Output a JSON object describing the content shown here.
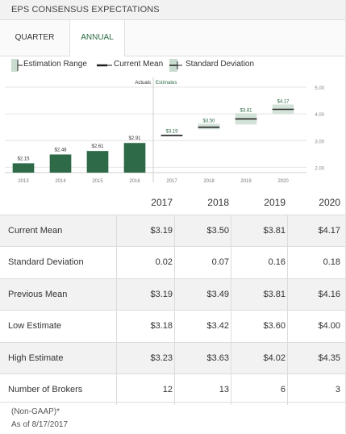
{
  "header": {
    "title": "EPS CONSENSUS EXPECTATIONS"
  },
  "tabs": [
    {
      "label": "QUARTER"
    },
    {
      "label": "ANNUAL"
    }
  ],
  "legend": {
    "estimation_range": "Estimation Range",
    "current_mean": "Current Mean",
    "standard_deviation": "Standard Deviation"
  },
  "colors": {
    "bar": "#2e6a48",
    "range": "#c9dccf",
    "mean": "#222222",
    "accent": "#2b6b45",
    "grid": "#e4e4e4"
  },
  "chart_data": {
    "type": "bar",
    "section_labels": {
      "actuals": "Actuals",
      "estimates": "Estimates"
    },
    "categories": [
      "2013",
      "2014",
      "2015",
      "2016",
      "2017",
      "2018",
      "2019",
      "2020"
    ],
    "actuals": [
      {
        "year": "2013",
        "value": 2.15,
        "label": "$2.15"
      },
      {
        "year": "2014",
        "value": 2.48,
        "label": "$2.48"
      },
      {
        "year": "2015",
        "value": 2.61,
        "label": "$2.61"
      },
      {
        "year": "2016",
        "value": 2.91,
        "label": "$2.91"
      }
    ],
    "estimates": [
      {
        "year": "2017",
        "mean": 3.19,
        "low": 3.18,
        "high": 3.23,
        "label": "$3.19"
      },
      {
        "year": "2018",
        "mean": 3.5,
        "low": 3.42,
        "high": 3.63,
        "label": "$3.50"
      },
      {
        "year": "2019",
        "mean": 3.81,
        "low": 3.6,
        "high": 4.02,
        "label": "$3.81"
      },
      {
        "year": "2020",
        "mean": 4.17,
        "low": 4.0,
        "high": 4.35,
        "label": "$4.17"
      }
    ],
    "y_ticks": [
      "2.00",
      "3.00",
      "4.00",
      "5.00"
    ],
    "ylim": [
      1.8,
      5.0
    ],
    "grid": true
  },
  "table": {
    "columns": [
      "2017",
      "2018",
      "2019",
      "2020"
    ],
    "rows": [
      {
        "label": "Current Mean",
        "values": [
          "$3.19",
          "$3.50",
          "$3.81",
          "$4.17"
        ]
      },
      {
        "label": "Standard Deviation",
        "values": [
          "0.02",
          "0.07",
          "0.16",
          "0.18"
        ]
      },
      {
        "label": "Previous Mean",
        "values": [
          "$3.19",
          "$3.49",
          "$3.81",
          "$4.16"
        ]
      },
      {
        "label": "Low Estimate",
        "values": [
          "$3.18",
          "$3.42",
          "$3.60",
          "$4.00"
        ]
      },
      {
        "label": "High Estimate",
        "values": [
          "$3.23",
          "$3.63",
          "$4.02",
          "$4.35"
        ]
      },
      {
        "label": "Number of Brokers",
        "values": [
          "12",
          "13",
          "6",
          "3"
        ]
      }
    ]
  },
  "footer": {
    "note": "(Non-GAAP)*",
    "as_of": "As of 8/17/2017"
  }
}
